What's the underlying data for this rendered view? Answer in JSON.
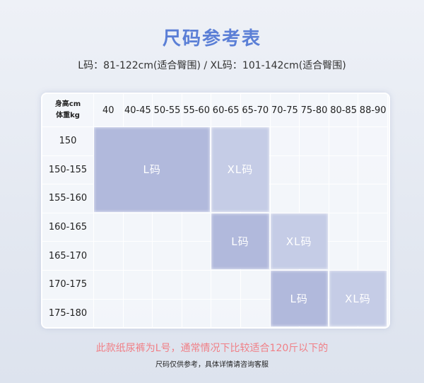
{
  "title": "尺码参考表",
  "subtitle": "L码：81-122cm(适合臀围) / XL码：101-142cm(适合臀围)",
  "table": {
    "corner": [
      "身高cm",
      "体重kg"
    ],
    "columns": [
      "40",
      "40-45",
      "50-55",
      "55-60",
      "60-65",
      "65-70",
      "70-75",
      "75-80",
      "80-85",
      "88-90"
    ],
    "rows": [
      "150",
      "150-155",
      "155-160",
      "160-165",
      "165-170",
      "170-175",
      "175-180"
    ],
    "blocks": [
      {
        "label": "L码",
        "col_start": 0,
        "col_end": 3,
        "row_start": 0,
        "row_end": 2,
        "color": "#b1b9dc"
      },
      {
        "label": "XL码",
        "col_start": 4,
        "col_end": 5,
        "row_start": 0,
        "row_end": 2,
        "color": "#c5cce6"
      },
      {
        "label": "L码",
        "col_start": 4,
        "col_end": 5,
        "row_start": 3,
        "row_end": 4,
        "color": "#b1b9dc"
      },
      {
        "label": "XL码",
        "col_start": 6,
        "col_end": 7,
        "row_start": 3,
        "row_end": 4,
        "color": "#c5cce6"
      },
      {
        "label": "L码",
        "col_start": 6,
        "col_end": 7,
        "row_start": 5,
        "row_end": 6,
        "color": "#b1b9dc"
      },
      {
        "label": "XL码",
        "col_start": 8,
        "col_end": 9,
        "row_start": 5,
        "row_end": 6,
        "color": "#c5cce6"
      }
    ]
  },
  "note": "此款纸尿裤为L号，通常情况下比较适合120斤以下的",
  "footer": "尺码仅供参考，具体详情请咨询客服"
}
